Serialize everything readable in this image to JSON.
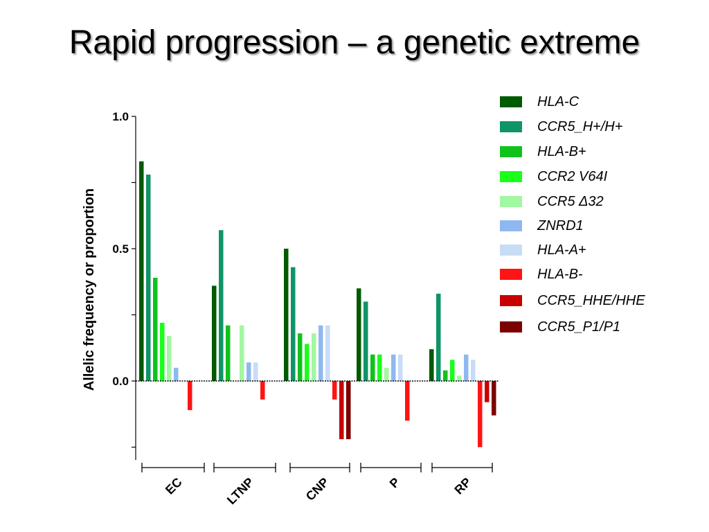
{
  "slide": {
    "title": "Rapid progression – a genetic extreme"
  },
  "chart_data": {
    "type": "bar",
    "title": "",
    "xlabel": "",
    "ylabel": "Allelic frequency or proportion",
    "ylim": [
      -0.3,
      1.0
    ],
    "yticks": [
      {
        "value": 1.0,
        "label": "1.0"
      },
      {
        "value": 0.75,
        "label": ""
      },
      {
        "value": 0.5,
        "label": "0.5"
      },
      {
        "value": 0.25,
        "label": ""
      },
      {
        "value": 0.0,
        "label": "0.0"
      },
      {
        "value": -0.25,
        "label": ""
      }
    ],
    "categories": [
      "EC",
      "LTNP",
      "CNP",
      "P",
      "RP"
    ],
    "legend_position": "right",
    "grid": false,
    "series": [
      {
        "name": "HLA-C",
        "color": "#005a00",
        "values": [
          0.83,
          0.36,
          0.5,
          0.35,
          0.12
        ]
      },
      {
        "name": "CCR5_H+/H+",
        "color": "#0f9467",
        "values": [
          0.78,
          0.57,
          0.43,
          0.3,
          0.33
        ]
      },
      {
        "name": "HLA-B+",
        "color": "#10c21c",
        "values": [
          0.39,
          0.21,
          0.18,
          0.1,
          0.04
        ]
      },
      {
        "name": "CCR2 V64I",
        "color": "#19ff19",
        "values": [
          0.22,
          0.0,
          0.14,
          0.1,
          0.08
        ]
      },
      {
        "name": "CCR5 Δ32",
        "color": "#a2f7a2",
        "values": [
          0.17,
          0.21,
          0.18,
          0.05,
          0.02
        ]
      },
      {
        "name": "ZNRD1",
        "color": "#8fb8f0",
        "values": [
          0.05,
          0.07,
          0.21,
          0.1,
          0.1
        ]
      },
      {
        "name": "HLA-A+",
        "color": "#c7dcf5",
        "values": [
          0.0,
          0.07,
          0.21,
          0.1,
          0.08
        ]
      },
      {
        "name": "HLA-B-",
        "color": "#ff1414",
        "values": [
          -0.11,
          -0.07,
          -0.07,
          -0.15,
          -0.25
        ]
      },
      {
        "name": "CCR5_HHE/HHE",
        "color": "#c80000",
        "values": [
          0.0,
          0.0,
          -0.22,
          0.0,
          -0.08
        ]
      },
      {
        "name": "CCR5_P1/P1",
        "color": "#7d0000",
        "values": [
          0.0,
          0.0,
          -0.22,
          0.0,
          -0.13
        ]
      }
    ]
  }
}
